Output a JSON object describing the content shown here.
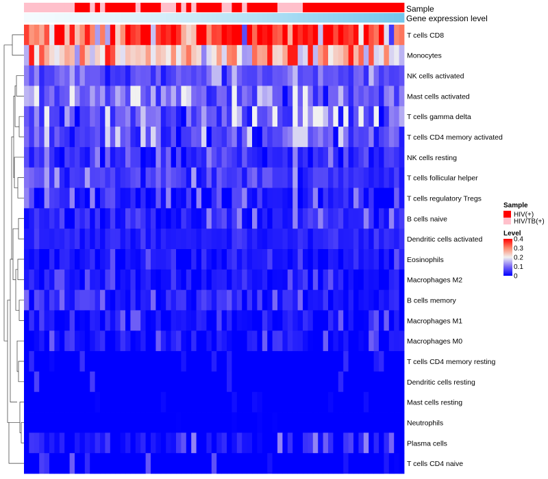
{
  "chart_data": {
    "type": "heatmap",
    "title": "",
    "annotations": {
      "sample_label": "Sample",
      "gene_label": "Gene expression level",
      "sample_colors": {
        "HIV(+)": "#ff0000",
        "HIV/TB(+)": "#ffc0cb"
      },
      "sample_groups": [
        "HIV/TB(+)",
        "HIV/TB(+)",
        "HIV/TB(+)",
        "HIV/TB(+)",
        "HIV/TB(+)",
        "HIV/TB(+)",
        "HIV/TB(+)",
        "HIV/TB(+)",
        "HIV/TB(+)",
        "HIV/TB(+)",
        "HIV(+)",
        "HIV(+)",
        "HIV(+)",
        "HIV/TB(+)",
        "HIV(+)",
        "HIV/TB(+)",
        "HIV(+)",
        "HIV(+)",
        "HIV(+)",
        "HIV(+)",
        "HIV(+)",
        "HIV(+)",
        "HIV/TB(+)",
        "HIV(+)",
        "HIV(+)",
        "HIV(+)",
        "HIV(+)",
        "HIV/TB(+)",
        "HIV/TB(+)",
        "HIV/TB(+)",
        "HIV(+)",
        "HIV/TB(+)",
        "HIV(+)",
        "HIV/TB(+)",
        "HIV(+)",
        "HIV(+)",
        "HIV(+)",
        "HIV(+)",
        "HIV(+)",
        "HIV/TB(+)",
        "HIV/TB(+)",
        "HIV(+)",
        "HIV(+)",
        "HIV/TB(+)",
        "HIV(+)",
        "HIV(+)",
        "HIV(+)",
        "HIV(+)",
        "HIV(+)",
        "HIV(+)",
        "HIV/TB(+)",
        "HIV/TB(+)",
        "HIV/TB(+)",
        "HIV/TB(+)",
        "HIV/TB(+)",
        "HIV(+)",
        "HIV(+)",
        "HIV(+)",
        "HIV(+)",
        "HIV(+)",
        "HIV(+)",
        "HIV(+)",
        "HIV(+)",
        "HIV(+)",
        "HIV(+)",
        "HIV(+)",
        "HIV(+)",
        "HIV(+)",
        "HIV(+)",
        "HIV(+)",
        "HIV(+)",
        "HIV(+)",
        "HIV(+)",
        "HIV(+)",
        "HIV(+)"
      ],
      "gene_colors": {
        "low": "#f4fbfe",
        "high": "#74c6ec"
      }
    },
    "rows": [
      "T cells CD8",
      "Monocytes",
      "NK cells activated",
      "Mast cells activated",
      "T cells gamma delta",
      "T cells CD4 memory activated",
      "NK cells resting",
      "T cells follicular helper",
      "T cells regulatory  Tregs",
      "B cells naive",
      "Dendritic cells activated",
      "Eosinophils",
      "Macrophages M2",
      "B cells memory",
      "Macrophages M1",
      "Macrophages M0",
      "T cells CD4 memory resting",
      "Dendritic cells resting",
      "Mast cells resting",
      "Neutrophils",
      "Plasma cells",
      "T cells CD4 naive"
    ],
    "n_columns": 75,
    "color_scale": {
      "domain": [
        0,
        0.1,
        0.2,
        0.3,
        0.4
      ],
      "colors": [
        "#0000ff",
        "#7a68f5",
        "#f1f1f1",
        "#fd8a6e",
        "#ff0000"
      ]
    },
    "row_levels": [
      [
        0.32,
        0.02,
        0.45
      ],
      [
        0.22,
        0.04,
        0.38
      ],
      [
        0.08,
        0.015,
        0.16
      ],
      [
        0.085,
        0.0,
        0.2
      ],
      [
        0.07,
        0.0,
        0.2
      ],
      [
        0.07,
        0.0,
        0.18
      ],
      [
        0.035,
        0.0,
        0.12
      ],
      [
        0.055,
        0.0,
        0.14
      ],
      [
        0.03,
        0.0,
        0.12
      ],
      [
        0.04,
        0.0,
        0.12
      ],
      [
        0.03,
        0.0,
        0.06
      ],
      [
        0.02,
        0.0,
        0.08
      ],
      [
        0.015,
        0.0,
        0.08
      ],
      [
        0.02,
        0.0,
        0.1
      ],
      [
        0.01,
        0.0,
        0.09
      ],
      [
        0.015,
        0.0,
        0.09
      ],
      [
        0.003,
        0.0,
        0.05
      ],
      [
        0.005,
        0.0,
        0.07
      ],
      [
        0.002,
        0.0,
        0.02
      ],
      [
        0.0,
        0.0,
        0.01
      ],
      [
        0.012,
        0.0,
        0.12
      ],
      [
        0.004,
        0.0,
        0.09
      ]
    ],
    "legend": {
      "sample_title": "Sample",
      "sample_entries": [
        "HIV(+)",
        "HIV/TB(+)"
      ],
      "level_title": "Level",
      "level_ticks": [
        "0.4",
        "0.3",
        "0.2",
        "0.1",
        "0"
      ]
    }
  }
}
